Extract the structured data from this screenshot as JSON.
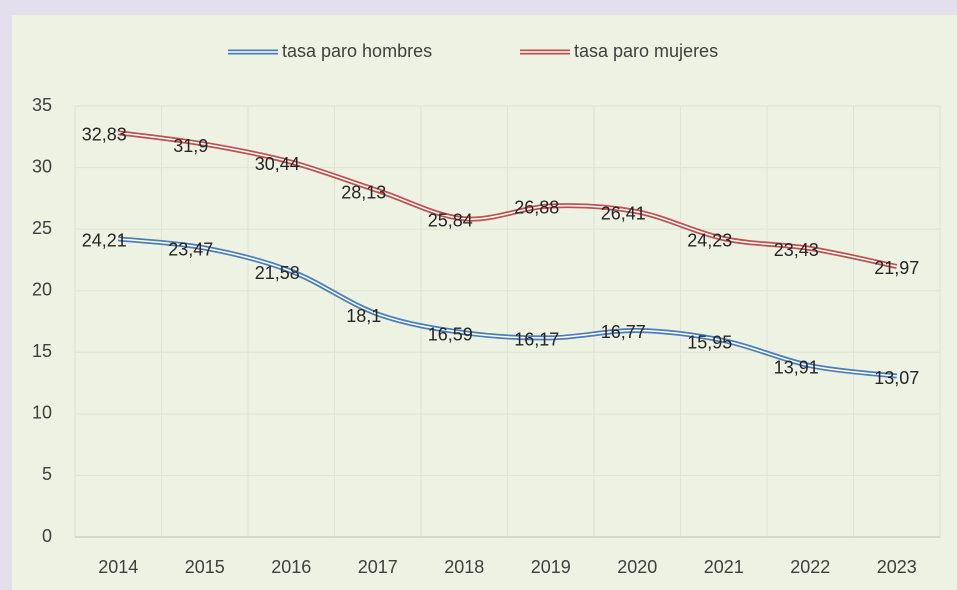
{
  "chart_data": {
    "type": "line",
    "categories": [
      "2014",
      "2015",
      "2016",
      "2017",
      "2018",
      "2019",
      "2020",
      "2021",
      "2022",
      "2023"
    ],
    "series": [
      {
        "name": "tasa paro hombres",
        "color": "#4a7ebb",
        "values": [
          24.21,
          23.47,
          21.58,
          18.1,
          16.59,
          16.17,
          16.77,
          15.95,
          13.91,
          13.07
        ],
        "value_labels": [
          "24,21",
          "23,47",
          "21,58",
          "18,1",
          "16,59",
          "16,17",
          "16,77",
          "15,95",
          "13,91",
          "13,07"
        ]
      },
      {
        "name": "tasa paro mujeres",
        "color": "#c0504d",
        "values": [
          32.83,
          31.9,
          30.44,
          28.13,
          25.84,
          26.88,
          26.41,
          24.23,
          23.43,
          21.97
        ],
        "value_labels": [
          "32,83",
          "31,9",
          "30,44",
          "28,13",
          "25,84",
          "26,88",
          "26,41",
          "24,23",
          "23,43",
          "21,97"
        ]
      }
    ],
    "ylim": [
      0,
      35
    ],
    "yticks": [
      0,
      5,
      10,
      15,
      20,
      25,
      30,
      35
    ],
    "grid": true,
    "legend": "top"
  }
}
